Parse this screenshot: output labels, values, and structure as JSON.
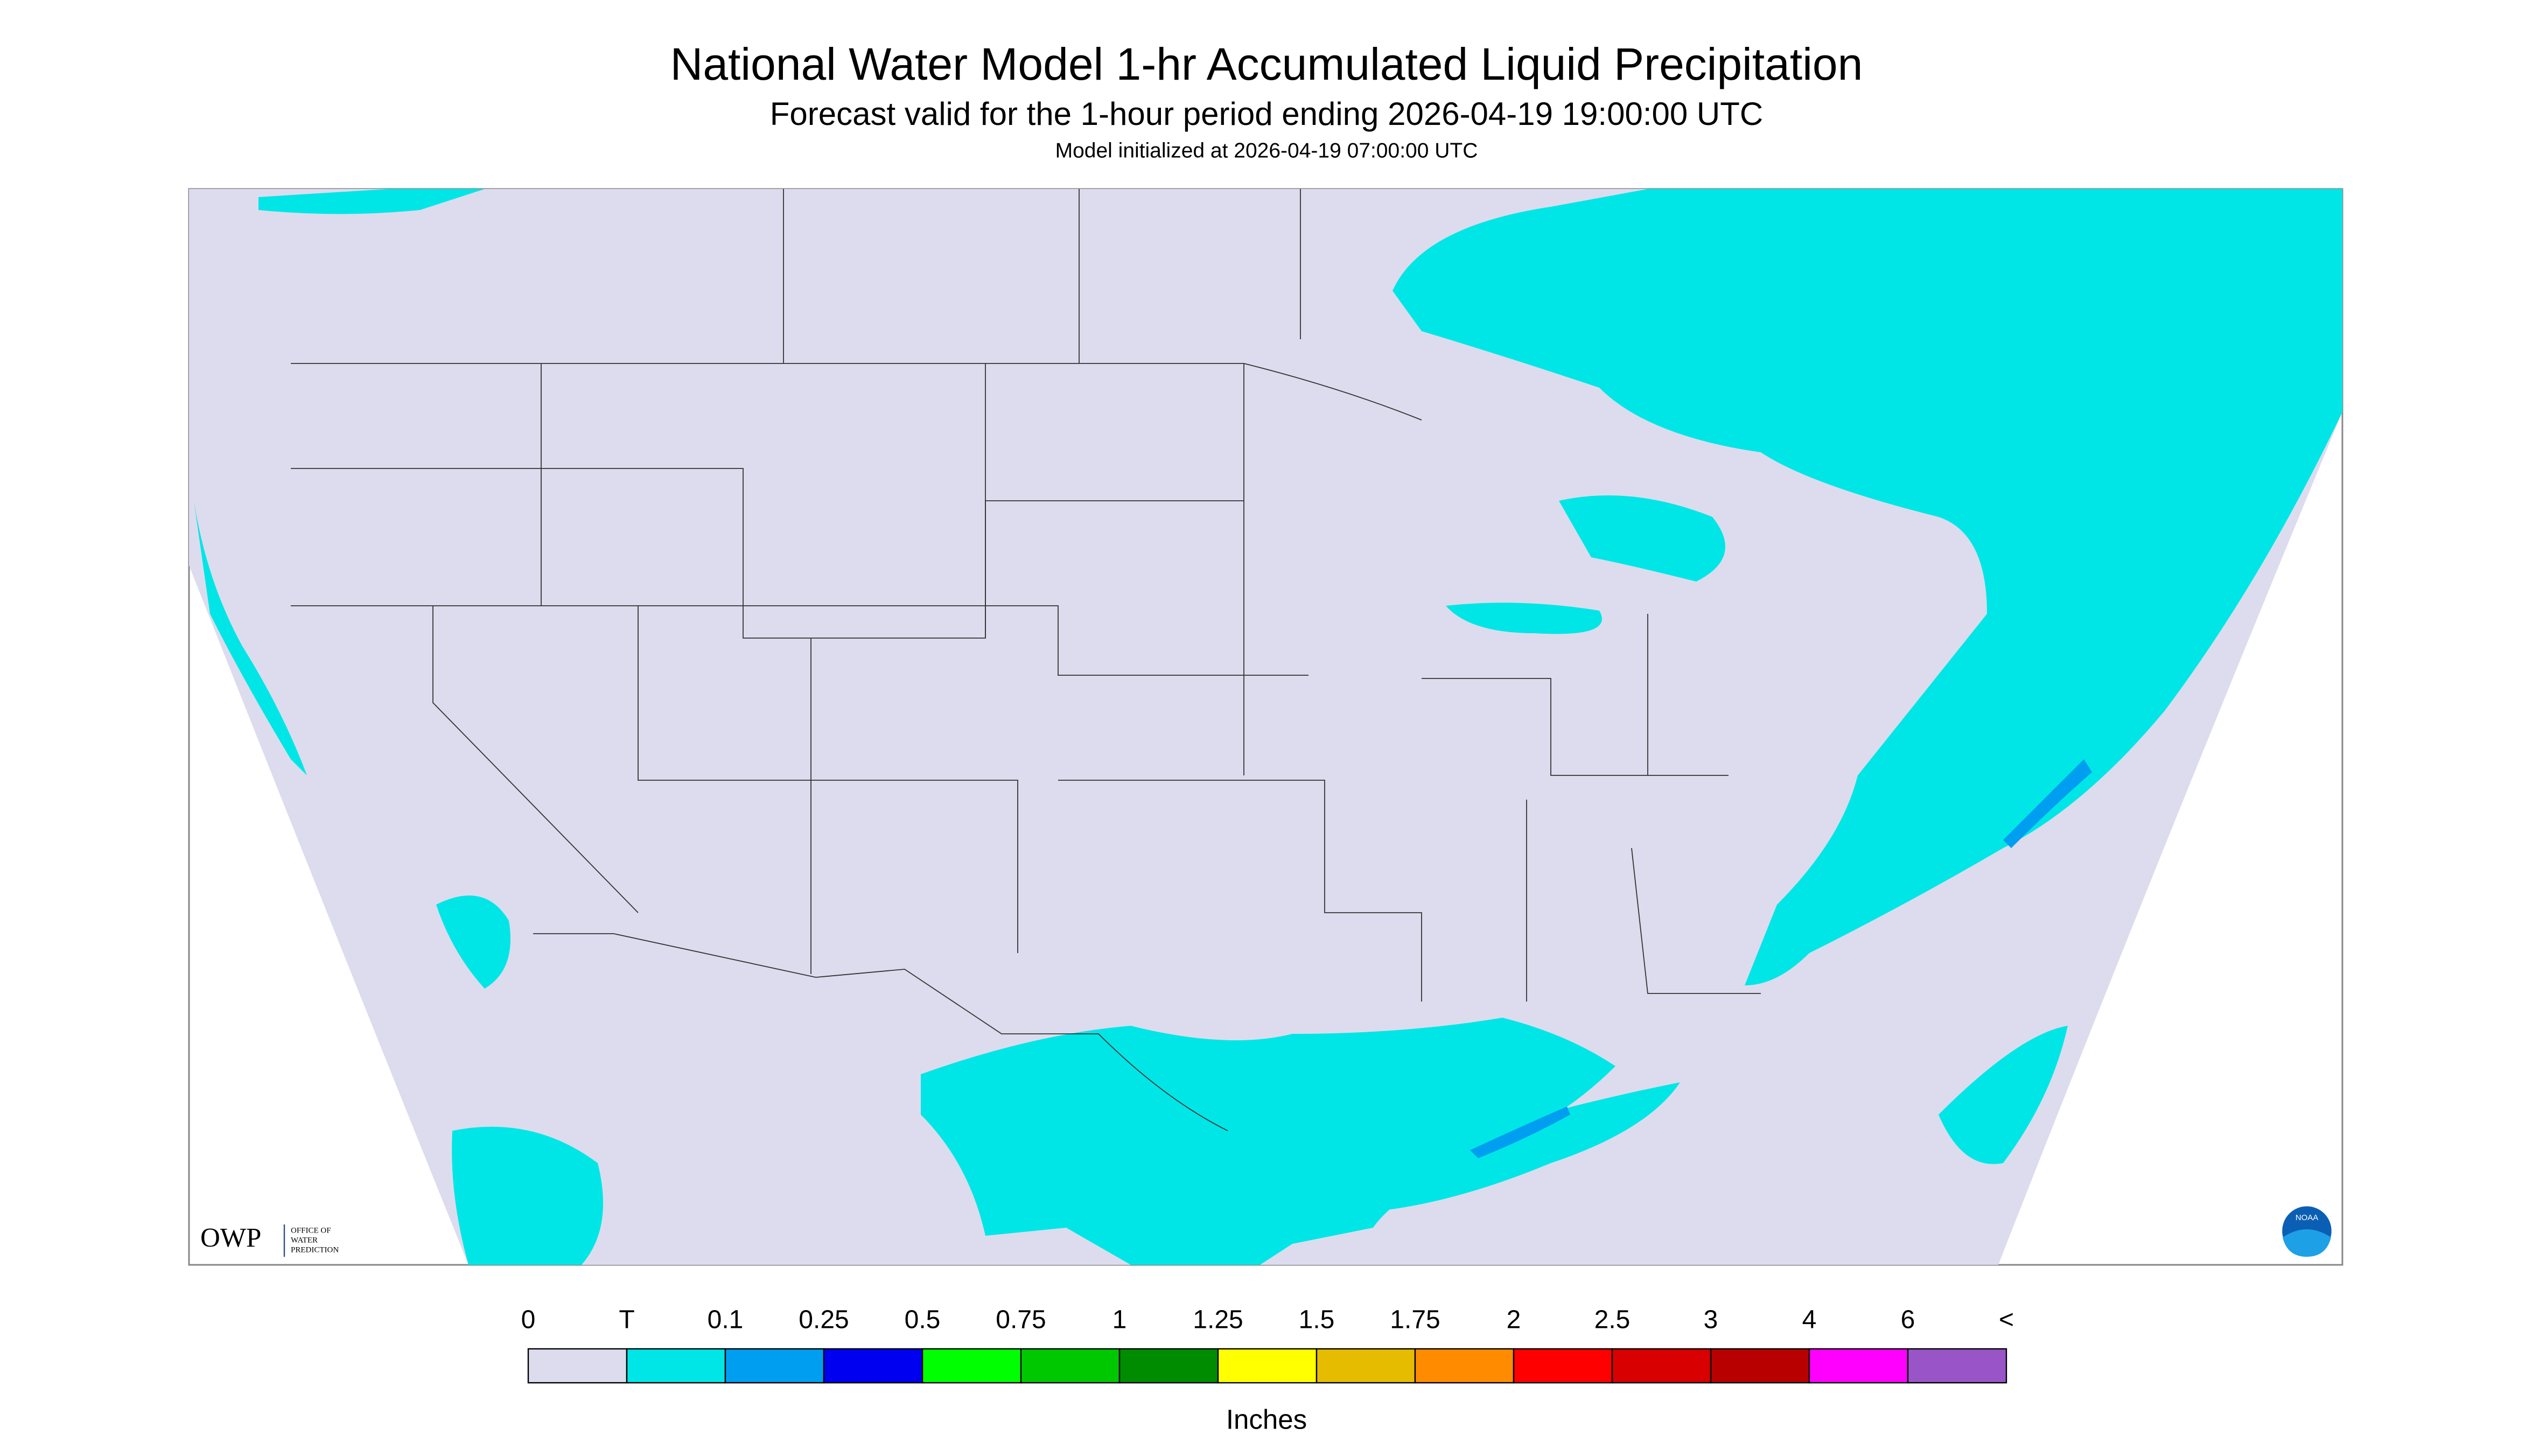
{
  "header": {
    "title": "National Water Model 1-hr Accumulated Liquid Precipitation",
    "subtitle": "Forecast valid for the 1-hour period ending 2026-04-19 19:00:00 UTC",
    "initialized": "Model initialized at 2026-04-19 07:00:00 UTC"
  },
  "legend": {
    "labels": [
      "0",
      "T",
      "0.1",
      "0.25",
      "0.5",
      "0.75",
      "1",
      "1.25",
      "1.5",
      "1.75",
      "2",
      "2.5",
      "3",
      "4",
      "6",
      "<"
    ],
    "colors": [
      "#dcdcee",
      "#00e6e6",
      "#009ef0",
      "#0000f0",
      "#00ff00",
      "#00c800",
      "#008c00",
      "#ffff00",
      "#e6bc00",
      "#ff8c00",
      "#ff0000",
      "#d80000",
      "#b80000",
      "#ff00ff",
      "#9955c8"
    ],
    "unit": "Inches"
  },
  "logos": {
    "owp": "OWP",
    "owp_text": [
      "OFFICE OF",
      "WATER",
      "PREDICTION"
    ],
    "noaa": "NOAA"
  }
}
